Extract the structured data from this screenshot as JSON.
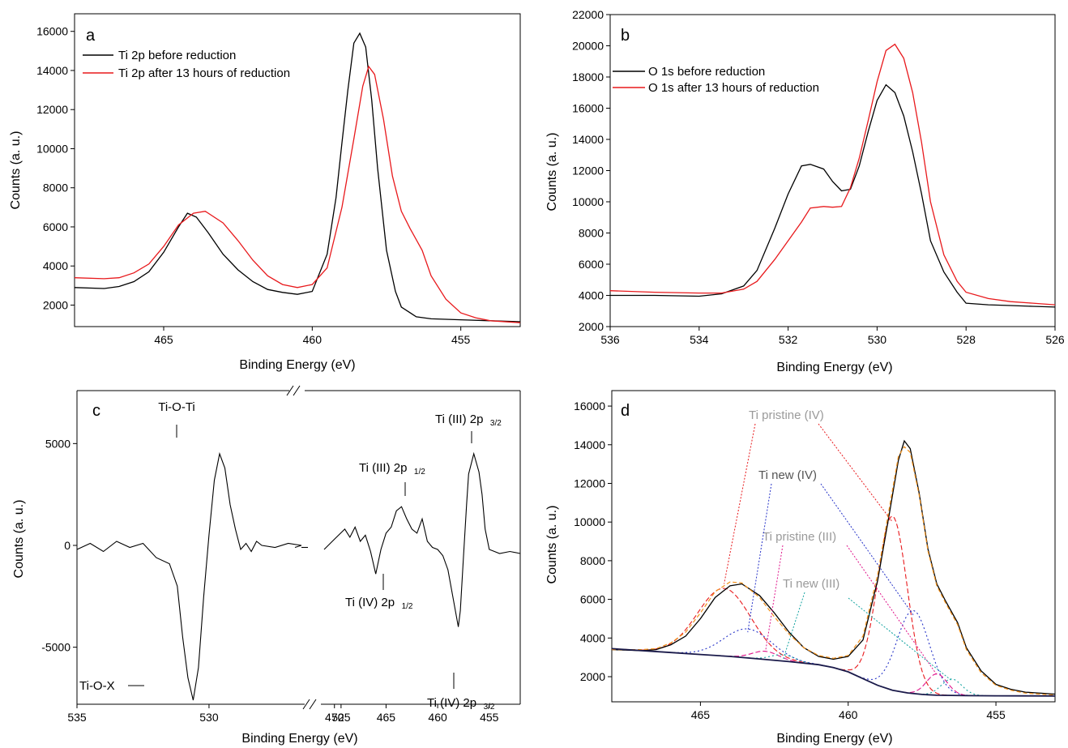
{
  "colors": {
    "black": "#000000",
    "red": "#e8191c",
    "orange": "#f39019",
    "blue": "#2633c8",
    "magenta": "#e0138a",
    "teal": "#12a3a0",
    "gray": "#9a9a9a",
    "dark_gray": "#555555"
  },
  "chart_data": [
    {
      "id": "a",
      "type": "line",
      "panel_label": "a",
      "xlabel": "Binding Energy (eV)",
      "ylabel": "Counts (a. u.)",
      "xlim": [
        468,
        453
      ],
      "ylim": [
        900,
        16900
      ],
      "reversed_x": true,
      "xticks": [
        465,
        460,
        455
      ],
      "yticks": [
        2000,
        4000,
        6000,
        8000,
        10000,
        12000,
        14000,
        16000
      ],
      "legend_position": "top-left",
      "series": [
        {
          "name": "Ti 2p before reduction",
          "color": "black",
          "x": [
            468,
            467,
            466.5,
            466,
            465.5,
            465,
            464.5,
            464.2,
            463.9,
            463.5,
            463,
            462.5,
            462,
            461.5,
            461,
            460.5,
            460,
            459.5,
            459.2,
            459,
            458.8,
            458.6,
            458.4,
            458.2,
            458,
            457.8,
            457.5,
            457.2,
            457,
            456.5,
            456,
            455,
            454,
            453
          ],
          "y": [
            2900,
            2850,
            2950,
            3200,
            3700,
            4700,
            6000,
            6700,
            6500,
            5700,
            4600,
            3800,
            3200,
            2800,
            2650,
            2550,
            2700,
            4600,
            7500,
            10300,
            13000,
            15400,
            15900,
            15200,
            12500,
            9000,
            4800,
            2700,
            1900,
            1400,
            1300,
            1250,
            1200,
            1150
          ]
        },
        {
          "name": "Ti 2p after 13 hours of reduction",
          "color": "red",
          "x": [
            468,
            467,
            466.5,
            466,
            465.5,
            465,
            464.5,
            464,
            463.6,
            463,
            462.5,
            462,
            461.5,
            461,
            460.5,
            460,
            459.5,
            459,
            458.6,
            458.3,
            458.1,
            457.9,
            457.6,
            457.3,
            457,
            456.7,
            456.3,
            456,
            455.5,
            455,
            454.5,
            454,
            453
          ],
          "y": [
            3400,
            3350,
            3400,
            3650,
            4100,
            5000,
            6100,
            6700,
            6800,
            6200,
            5300,
            4300,
            3500,
            3050,
            2900,
            3050,
            3900,
            7000,
            10500,
            13200,
            14200,
            13800,
            11500,
            8600,
            6800,
            5900,
            4800,
            3500,
            2300,
            1600,
            1350,
            1200,
            1100
          ]
        }
      ]
    },
    {
      "id": "b",
      "type": "line",
      "panel_label": "b",
      "xlabel": "Binding Energy (eV)",
      "ylabel": "Counts (a. u.)",
      "xlim": [
        536,
        526
      ],
      "ylim": [
        2000,
        22000
      ],
      "reversed_x": true,
      "xticks": [
        536,
        534,
        532,
        530,
        528,
        526
      ],
      "yticks": [
        2000,
        4000,
        6000,
        8000,
        10000,
        12000,
        14000,
        16000,
        18000,
        20000,
        22000
      ],
      "legend_position": "top-left",
      "series": [
        {
          "name": "O 1s before reduction",
          "color": "black",
          "x": [
            536,
            535,
            534,
            533.5,
            533,
            532.7,
            532.3,
            532,
            531.7,
            531.5,
            531.2,
            531,
            530.8,
            530.6,
            530.4,
            530.2,
            530,
            529.8,
            529.6,
            529.4,
            529.2,
            529,
            528.8,
            528.5,
            528.2,
            528,
            527.5,
            527,
            526.5,
            526
          ],
          "y": [
            4000,
            4000,
            3950,
            4100,
            4600,
            5600,
            8300,
            10500,
            12300,
            12400,
            12100,
            11300,
            10700,
            10800,
            12300,
            14500,
            16500,
            17500,
            17000,
            15500,
            13200,
            10500,
            7500,
            5500,
            4200,
            3500,
            3400,
            3350,
            3300,
            3250
          ]
        },
        {
          "name": "O 1s after 13 hours of reduction",
          "color": "red",
          "x": [
            536,
            535,
            534,
            533.5,
            533,
            532.7,
            532.3,
            532,
            531.7,
            531.5,
            531.2,
            531,
            530.8,
            530.6,
            530.4,
            530.2,
            530,
            529.8,
            529.6,
            529.4,
            529.2,
            529,
            528.8,
            528.5,
            528.2,
            528,
            527.5,
            527,
            526.5,
            526
          ],
          "y": [
            4300,
            4200,
            4150,
            4150,
            4400,
            4900,
            6300,
            7500,
            8700,
            9600,
            9700,
            9650,
            9700,
            10900,
            12800,
            15200,
            17700,
            19700,
            20100,
            19200,
            17000,
            13800,
            10000,
            6600,
            4900,
            4200,
            3800,
            3600,
            3500,
            3400
          ]
        }
      ]
    },
    {
      "id": "c",
      "type": "line",
      "panel_label": "c",
      "xlabel": "Binding Energy (eV)",
      "ylabel": "Counts (a. u.)",
      "ylim": [
        -7800,
        7600
      ],
      "broken_axis": true,
      "left_xlim": [
        535,
        526.5
      ],
      "right_xlim": [
        471,
        452
      ],
      "xticks_left": [
        535,
        530,
        525
      ],
      "xticks_right": [
        470,
        465,
        460,
        455
      ],
      "yticks": [
        -5000,
        0,
        5000
      ],
      "annotations": [
        {
          "text": "Ti-O-Ti",
          "sub": ""
        },
        {
          "text": "Ti-O-X",
          "sub": ""
        },
        {
          "text": "Ti (III) 2p",
          "sub": "1/2"
        },
        {
          "text": "Ti (IV) 2p",
          "sub": "1/2"
        },
        {
          "text": "Ti (III) 2p",
          "sub": "3/2"
        },
        {
          "text": "Ti (IV) 2p",
          "sub": "3/2"
        }
      ],
      "series": [
        {
          "name": "",
          "color": "black",
          "left_x": [
            535,
            534.5,
            534,
            533.5,
            533,
            532.5,
            532,
            531.5,
            531.2,
            531,
            530.8,
            530.6,
            530.4,
            530.2,
            530,
            529.8,
            529.6,
            529.4,
            529.2,
            529,
            528.8,
            528.6,
            528.4,
            528.2,
            528,
            527.5,
            527,
            526.5
          ],
          "left_y": [
            -200,
            100,
            -300,
            200,
            -100,
            100,
            -600,
            -900,
            -2000,
            -4500,
            -6500,
            -7600,
            -6000,
            -2500,
            500,
            3200,
            4500,
            3800,
            2000,
            800,
            -200,
            100,
            -300,
            200,
            0,
            -100,
            100,
            0
          ],
          "right_x": [
            471,
            470,
            469,
            468.5,
            468,
            467.5,
            467,
            466.5,
            466,
            465.5,
            465,
            464.5,
            464,
            463.5,
            463,
            462.5,
            462,
            461.5,
            461,
            460.5,
            460,
            459.5,
            459,
            458.5,
            458,
            457.8,
            457.5,
            457.2,
            457,
            456.5,
            456,
            455.7,
            455.4,
            455,
            454.5,
            454,
            453,
            452
          ],
          "right_y": [
            -200,
            300,
            800,
            400,
            900,
            200,
            500,
            -300,
            -1400,
            -200,
            600,
            900,
            1700,
            1900,
            1300,
            800,
            600,
            1300,
            200,
            -100,
            -200,
            -500,
            -1200,
            -2600,
            -4000,
            -3200,
            -600,
            2000,
            3500,
            4500,
            3600,
            2500,
            800,
            -200,
            -300,
            -400,
            -300,
            -400
          ]
        }
      ]
    },
    {
      "id": "d",
      "type": "line",
      "panel_label": "d",
      "xlabel": "Binding Energy (eV)",
      "ylabel": "Counts (a. u.)",
      "xlim": [
        468,
        453
      ],
      "ylim": [
        700,
        16800
      ],
      "reversed_x": true,
      "xticks": [
        465,
        460,
        455
      ],
      "yticks": [
        2000,
        4000,
        6000,
        8000,
        10000,
        12000,
        14000,
        16000
      ],
      "annotations": [
        {
          "text": "Ti pristine (IV)",
          "color": "gray"
        },
        {
          "text": "Ti new (IV)",
          "color": "dark_gray"
        },
        {
          "text": "Ti pristine (III)",
          "color": "gray"
        },
        {
          "text": "Ti new (III)",
          "color": "gray"
        }
      ],
      "series": [
        {
          "name": "",
          "color": "black",
          "role": "measured",
          "x": [
            468,
            467,
            466.5,
            466,
            465.5,
            465,
            464.5,
            464,
            463.6,
            463,
            462.5,
            462,
            461.5,
            461,
            460.5,
            460,
            459.5,
            459,
            458.6,
            458.3,
            458.1,
            457.9,
            457.6,
            457.3,
            457,
            456.7,
            456.3,
            456,
            455.5,
            455,
            454.5,
            454,
            453
          ],
          "y": [
            3400,
            3350,
            3400,
            3650,
            4100,
            5000,
            6100,
            6700,
            6800,
            6200,
            5300,
            4300,
            3500,
            3050,
            2900,
            3050,
            3900,
            7000,
            10500,
            13200,
            14200,
            13800,
            11500,
            8600,
            6800,
            5900,
            4800,
            3500,
            2300,
            1600,
            1350,
            1200,
            1100
          ]
        },
        {
          "name": "",
          "color": "orange",
          "role": "fit",
          "x": [
            468,
            467,
            466.5,
            466,
            465.5,
            465,
            464.5,
            464,
            463.6,
            463,
            462.5,
            462,
            461.5,
            461,
            460.5,
            460,
            459.5,
            459,
            458.6,
            458.3,
            458.1,
            457.9,
            457.6,
            457.3,
            457,
            456.7,
            456.3,
            456,
            455.5,
            455,
            454.5,
            454,
            453
          ],
          "y": [
            3400,
            3400,
            3450,
            3750,
            4300,
            5300,
            6400,
            6900,
            6850,
            6100,
            5100,
            4200,
            3500,
            3100,
            2950,
            3100,
            4100,
            7300,
            10800,
            13400,
            13900,
            13600,
            11400,
            8500,
            6700,
            5800,
            4700,
            3400,
            2200,
            1550,
            1300,
            1150,
            1050
          ]
        },
        {
          "name": "",
          "color": "black",
          "role": "background",
          "x": [
            468,
            467,
            466,
            465,
            464,
            463,
            462,
            461,
            460.5,
            460,
            459.5,
            459,
            458.5,
            458,
            457.5,
            457,
            456,
            455,
            454,
            453
          ],
          "y": [
            3450,
            3350,
            3250,
            3150,
            3050,
            2920,
            2780,
            2620,
            2470,
            2250,
            1900,
            1550,
            1300,
            1160,
            1080,
            1040,
            1020,
            1010,
            1005,
            1000
          ]
        },
        {
          "name": "",
          "color": "red",
          "role": "Ti pristine (IV)",
          "peaks": [
            {
              "center": 458.5,
              "height": 9000,
              "sigma": 0.5
            },
            {
              "center": 464.2,
              "height": 3500,
              "sigma": 0.9
            }
          ]
        },
        {
          "name": "",
          "color": "blue",
          "role": "Ti new (IV)",
          "peaks": [
            {
              "center": 457.8,
              "height": 4300,
              "sigma": 0.55
            },
            {
              "center": 463.4,
              "height": 1500,
              "sigma": 0.8
            }
          ]
        },
        {
          "name": "",
          "color": "magenta",
          "role": "Ti pristine (III)",
          "peaks": [
            {
              "center": 457.0,
              "height": 1100,
              "sigma": 0.35
            },
            {
              "center": 462.8,
              "height": 420,
              "sigma": 0.45
            }
          ]
        },
        {
          "name": "",
          "color": "teal",
          "role": "Ti new (III)",
          "peaks": [
            {
              "center": 456.5,
              "height": 850,
              "sigma": 0.35
            },
            {
              "center": 462.2,
              "height": 330,
              "sigma": 0.4
            }
          ]
        }
      ]
    }
  ]
}
